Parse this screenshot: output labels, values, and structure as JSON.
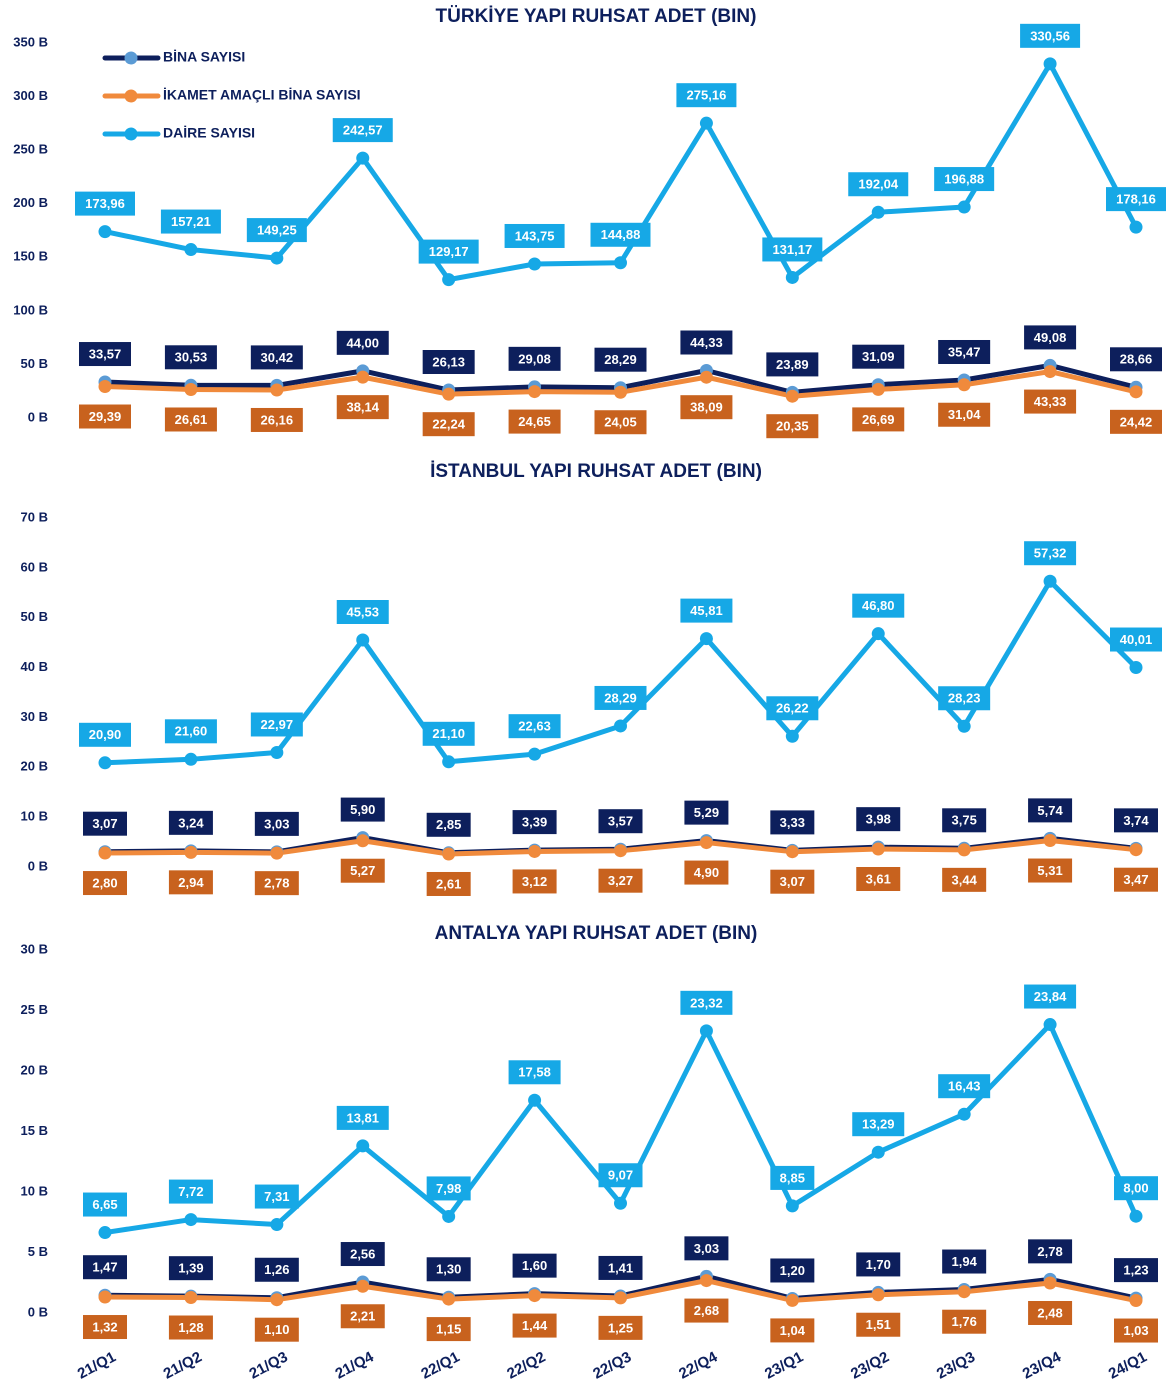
{
  "chart_data": [
    {
      "type": "line",
      "title": "TÜRKİYE YAPI RUHSAT ADET (BIN)",
      "ylim": [
        0,
        350
      ],
      "yticks": [
        {
          "value": 0,
          "label": "0 B"
        },
        {
          "value": 50,
          "label": "50 B"
        },
        {
          "value": 100,
          "label": "100 B"
        },
        {
          "value": 150,
          "label": "150 B"
        },
        {
          "value": 200,
          "label": "200 B"
        },
        {
          "value": 250,
          "label": "250 B"
        },
        {
          "value": 300,
          "label": "300 B"
        },
        {
          "value": 350,
          "label": "350 B"
        }
      ],
      "legend": "top-left",
      "series": [
        {
          "name": "BİNA SAYISI",
          "color": "#0d1f5c",
          "marker_color": "#5b9bd5",
          "label_color": "#0d1f5c",
          "values": [
            33.57,
            30.53,
            30.42,
            44.0,
            26.13,
            29.08,
            28.29,
            44.33,
            23.89,
            31.09,
            35.47,
            49.08,
            28.66
          ],
          "value_labels": [
            "33,57",
            "30,53",
            "30,42",
            "44,00",
            "26,13",
            "29,08",
            "28,29",
            "44,33",
            "23,89",
            "31,09",
            "35,47",
            "49,08",
            "28,66"
          ]
        },
        {
          "name": "İKAMET AMAÇLI BİNA SAYISI",
          "color": "#f08a3c",
          "marker_color": "#f08a3c",
          "label_color": "#c8621e",
          "values": [
            29.39,
            26.61,
            26.16,
            38.14,
            22.24,
            24.65,
            24.05,
            38.09,
            20.35,
            26.69,
            31.04,
            43.33,
            24.42
          ],
          "value_labels": [
            "29,39",
            "26,61",
            "26,16",
            "38,14",
            "22,24",
            "24,65",
            "24,05",
            "38,09",
            "20,35",
            "26,69",
            "31,04",
            "43,33",
            "24,42"
          ]
        },
        {
          "name": "DAİRE SAYISI",
          "color": "#16a8e6",
          "marker_color": "#16a8e6",
          "label_color": "#16a8e6",
          "values": [
            173.96,
            157.21,
            149.25,
            242.57,
            129.17,
            143.75,
            144.88,
            275.16,
            131.17,
            192.04,
            196.88,
            330.56,
            178.16
          ],
          "value_labels": [
            "173,96",
            "157,21",
            "149,25",
            "242,57",
            "129,17",
            "143,75",
            "144,88",
            "275,16",
            "131,17",
            "192,04",
            "196,88",
            "330,56",
            "178,16"
          ]
        }
      ]
    },
    {
      "type": "line",
      "title": "İSTANBUL YAPI RUHSAT ADET (BIN)",
      "ylim": [
        0,
        70
      ],
      "yticks": [
        {
          "value": 0,
          "label": "0 B"
        },
        {
          "value": 10,
          "label": "10 B"
        },
        {
          "value": 20,
          "label": "20 B"
        },
        {
          "value": 30,
          "label": "30 B"
        },
        {
          "value": 40,
          "label": "40 B"
        },
        {
          "value": 50,
          "label": "50 B"
        },
        {
          "value": 60,
          "label": "60 B"
        },
        {
          "value": 70,
          "label": "70 B"
        }
      ],
      "series": [
        {
          "color": "#0d1f5c",
          "marker_color": "#5b9bd5",
          "label_color": "#0d1f5c",
          "values": [
            3.07,
            3.24,
            3.03,
            5.9,
            2.85,
            3.39,
            3.57,
            5.29,
            3.33,
            3.98,
            3.75,
            5.74,
            3.74
          ],
          "value_labels": [
            "3,07",
            "3,24",
            "3,03",
            "5,90",
            "2,85",
            "3,39",
            "3,57",
            "5,29",
            "3,33",
            "3,98",
            "3,75",
            "5,74",
            "3,74"
          ]
        },
        {
          "color": "#f08a3c",
          "marker_color": "#f08a3c",
          "label_color": "#c8621e",
          "values": [
            2.8,
            2.94,
            2.78,
            5.27,
            2.61,
            3.12,
            3.27,
            4.9,
            3.07,
            3.61,
            3.44,
            5.31,
            3.47
          ],
          "value_labels": [
            "2,80",
            "2,94",
            "2,78",
            "5,27",
            "2,61",
            "3,12",
            "3,27",
            "4,90",
            "3,07",
            "3,61",
            "3,44",
            "5,31",
            "3,47"
          ]
        },
        {
          "color": "#16a8e6",
          "marker_color": "#16a8e6",
          "label_color": "#16a8e6",
          "values": [
            20.9,
            21.6,
            22.97,
            45.53,
            21.1,
            22.63,
            28.29,
            45.81,
            26.22,
            46.8,
            28.23,
            57.32,
            40.01
          ],
          "value_labels": [
            "20,90",
            "21,60",
            "22,97",
            "45,53",
            "21,10",
            "22,63",
            "28,29",
            "45,81",
            "26,22",
            "46,80",
            "28,23",
            "57,32",
            "40,01"
          ]
        }
      ]
    },
    {
      "type": "line",
      "title": "ANTALYA YAPI RUHSAT ADET (BIN)",
      "categories": [
        "21/Q1",
        "21/Q2",
        "21/Q3",
        "21/Q4",
        "22/Q1",
        "22/Q2",
        "22/Q3",
        "22/Q4",
        "23/Q1",
        "23/Q2",
        "23/Q3",
        "23/Q4",
        "24/Q1"
      ],
      "ylim": [
        0,
        30
      ],
      "yticks": [
        {
          "value": 0,
          "label": "0 B"
        },
        {
          "value": 5,
          "label": "5 B"
        },
        {
          "value": 10,
          "label": "10 B"
        },
        {
          "value": 15,
          "label": "15 B"
        },
        {
          "value": 20,
          "label": "20 B"
        },
        {
          "value": 25,
          "label": "25 B"
        },
        {
          "value": 30,
          "label": "30 B"
        }
      ],
      "series": [
        {
          "color": "#0d1f5c",
          "marker_color": "#5b9bd5",
          "label_color": "#0d1f5c",
          "values": [
            1.47,
            1.39,
            1.26,
            2.56,
            1.3,
            1.6,
            1.41,
            3.03,
            1.2,
            1.7,
            1.94,
            2.78,
            1.23
          ],
          "value_labels": [
            "1,47",
            "1,39",
            "1,26",
            "2,56",
            "1,30",
            "1,60",
            "1,41",
            "3,03",
            "1,20",
            "1,70",
            "1,94",
            "2,78",
            "1,23"
          ]
        },
        {
          "color": "#f08a3c",
          "marker_color": "#f08a3c",
          "label_color": "#c8621e",
          "values": [
            1.32,
            1.28,
            1.1,
            2.21,
            1.15,
            1.44,
            1.25,
            2.68,
            1.04,
            1.51,
            1.76,
            2.48,
            1.03
          ],
          "value_labels": [
            "1,32",
            "1,28",
            "1,10",
            "2,21",
            "1,15",
            "1,44",
            "1,25",
            "2,68",
            "1,04",
            "1,51",
            "1,76",
            "2,48",
            "1,03"
          ]
        },
        {
          "color": "#16a8e6",
          "marker_color": "#16a8e6",
          "label_color": "#16a8e6",
          "values": [
            6.65,
            7.72,
            7.31,
            13.81,
            7.98,
            17.58,
            9.07,
            23.32,
            8.85,
            13.29,
            16.43,
            23.84,
            8.0
          ],
          "value_labels": [
            "6,65",
            "7,72",
            "7,31",
            "13,81",
            "7,98",
            "17,58",
            "9,07",
            "23,32",
            "8,85",
            "13,29",
            "16,43",
            "23,84",
            "8,00"
          ]
        }
      ]
    }
  ]
}
